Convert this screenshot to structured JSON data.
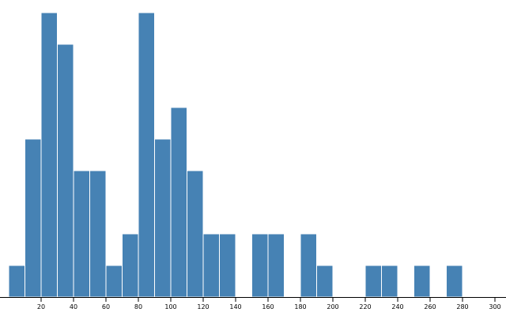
{
  "chart_data": {
    "type": "bar",
    "title": "",
    "xlabel": "",
    "ylabel": "",
    "xlim": [
      0,
      310
    ],
    "ylim": [
      0,
      9
    ],
    "bin_width": 10,
    "bar_color": "#4682b4",
    "bars": [
      {
        "x0": 0,
        "x1": 10,
        "value": 1
      },
      {
        "x0": 10,
        "x1": 20,
        "value": 5
      },
      {
        "x0": 20,
        "x1": 30,
        "value": 9
      },
      {
        "x0": 30,
        "x1": 40,
        "value": 8
      },
      {
        "x0": 40,
        "x1": 50,
        "value": 4
      },
      {
        "x0": 50,
        "x1": 60,
        "value": 4
      },
      {
        "x0": 60,
        "x1": 70,
        "value": 1
      },
      {
        "x0": 70,
        "x1": 80,
        "value": 2
      },
      {
        "x0": 80,
        "x1": 90,
        "value": 9
      },
      {
        "x0": 90,
        "x1": 100,
        "value": 5
      },
      {
        "x0": 100,
        "x1": 110,
        "value": 6
      },
      {
        "x0": 110,
        "x1": 120,
        "value": 4
      },
      {
        "x0": 120,
        "x1": 130,
        "value": 2
      },
      {
        "x0": 130,
        "x1": 140,
        "value": 2
      },
      {
        "x0": 150,
        "x1": 160,
        "value": 2
      },
      {
        "x0": 160,
        "x1": 170,
        "value": 2
      },
      {
        "x0": 180,
        "x1": 190,
        "value": 2
      },
      {
        "x0": 190,
        "x1": 200,
        "value": 1
      },
      {
        "x0": 220,
        "x1": 230,
        "value": 1
      },
      {
        "x0": 230,
        "x1": 240,
        "value": 1
      },
      {
        "x0": 250,
        "x1": 260,
        "value": 1
      },
      {
        "x0": 270,
        "x1": 280,
        "value": 1
      }
    ],
    "x_ticks": [
      20,
      40,
      60,
      80,
      100,
      120,
      140,
      160,
      180,
      200,
      220,
      240,
      260,
      280,
      300
    ],
    "x_tick_labels": [
      "20",
      "40",
      "60",
      "80",
      "100",
      "120",
      "140",
      "160",
      "180",
      "200",
      "220",
      "240",
      "260",
      "280",
      "300"
    ],
    "grid": false,
    "legend": "none"
  }
}
